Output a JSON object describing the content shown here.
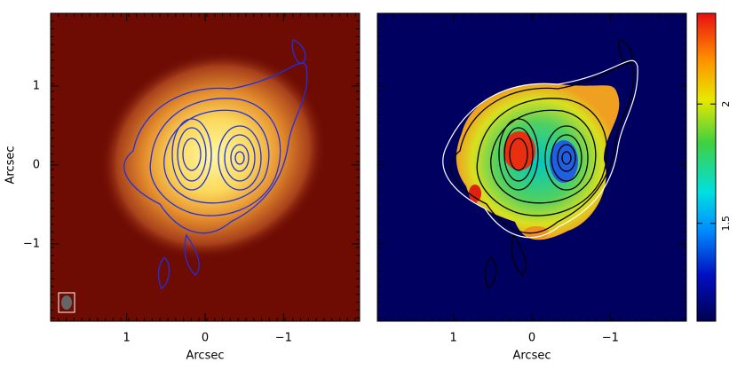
{
  "chart_data": [
    {
      "type": "image",
      "xlabel": "Arcsec",
      "ylabel": "Arcsec",
      "xlim": [
        1.97,
        -1.97
      ],
      "ylim": [
        -1.98,
        1.92
      ],
      "xticks": [
        1,
        0,
        {
          "value": -1,
          "label": "−1"
        }
      ],
      "yticks": [
        {
          "value": -1,
          "label": "−1"
        },
        0,
        1
      ]
    },
    {
      "type": "image",
      "xlabel": "Arcsec",
      "xlim": [
        1.97,
        -1.97
      ],
      "ylim": [
        -1.98,
        1.92
      ],
      "xticks": [
        1,
        0,
        {
          "value": -1,
          "label": "−1"
        }
      ]
    },
    {
      "type": "colorbar",
      "ylim": [
        1.09,
        2.38
      ],
      "yticks": [
        1.5,
        2
      ]
    }
  ]
}
